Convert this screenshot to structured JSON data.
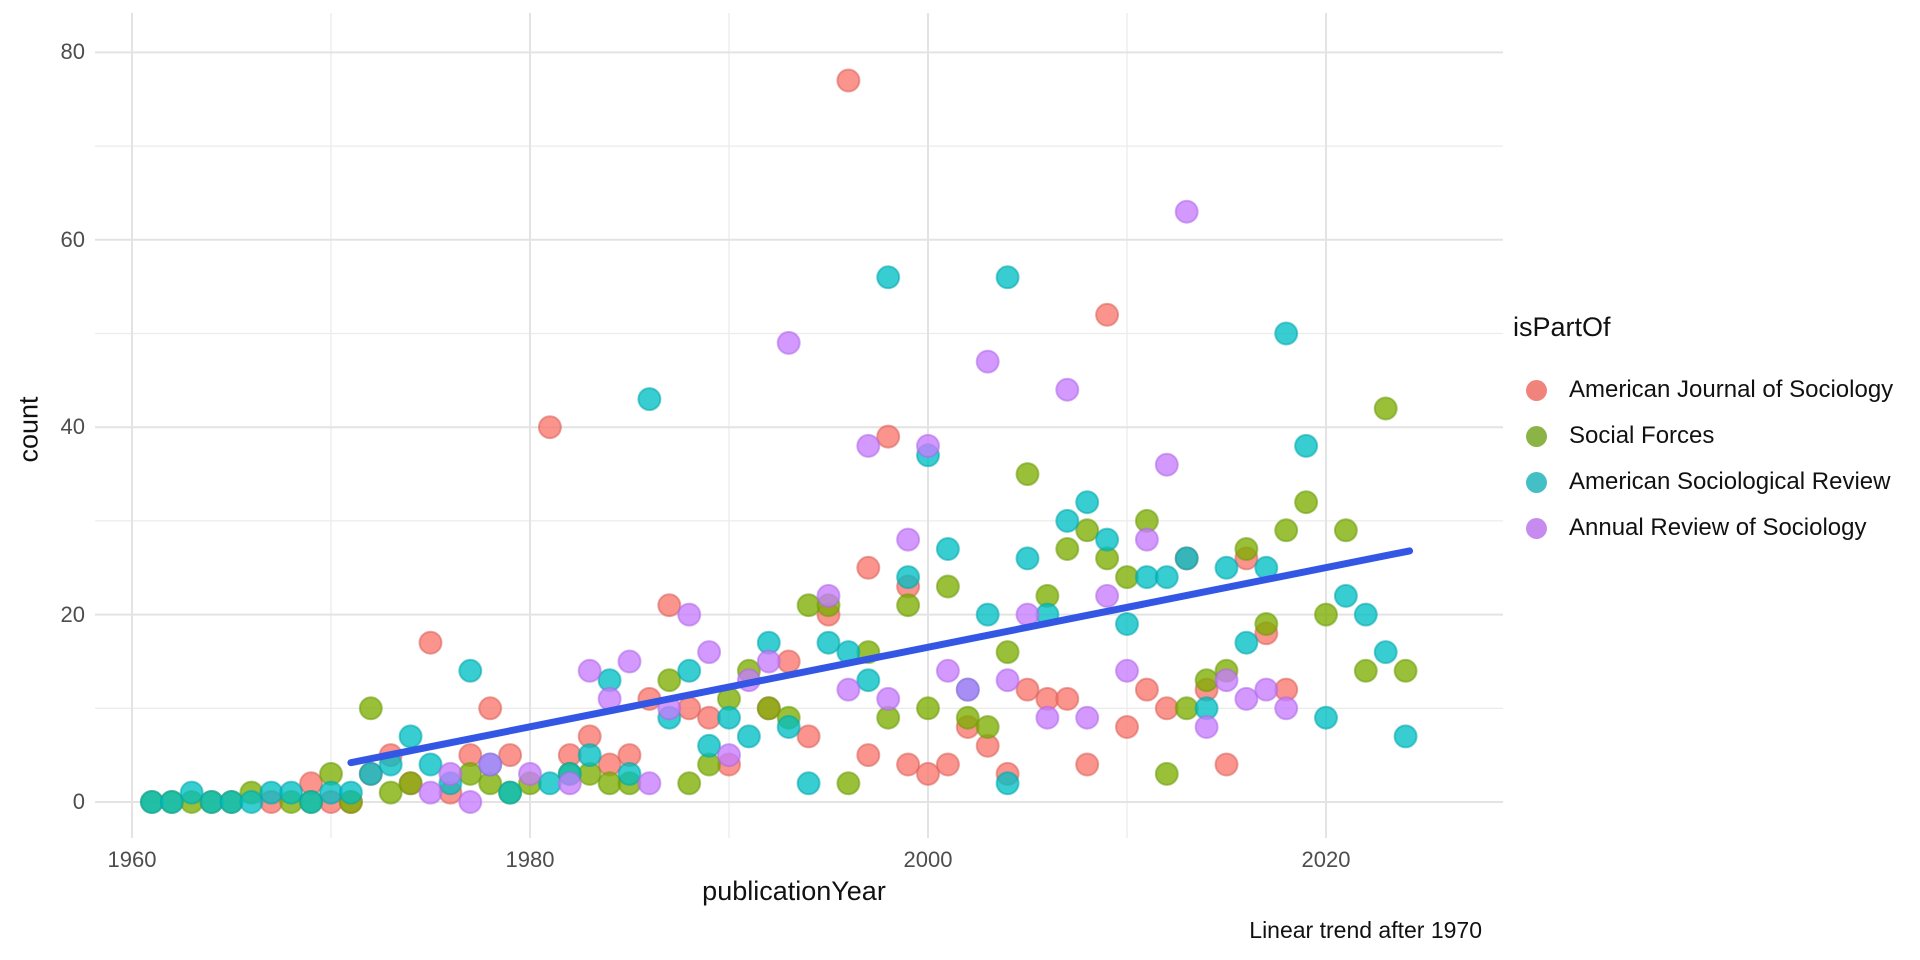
{
  "caption": "Linear trend after 1970",
  "legend": {
    "title": "isPartOf",
    "entries": [
      {
        "label": "American Journal of Sociology",
        "color": "#F0837B"
      },
      {
        "label": "Social Forces",
        "color": "#8AB446"
      },
      {
        "label": "American Sociological Review",
        "color": "#44BFC5"
      },
      {
        "label": "Annual Review of Sociology",
        "color": "#C78BF0"
      }
    ]
  },
  "chart_data": {
    "type": "scatter",
    "title": "",
    "xlabel": "publicationYear",
    "ylabel": "count",
    "x_ticks": [
      1960,
      1980,
      2000,
      2020
    ],
    "x_minor_ticks": [
      1970,
      1990,
      2010
    ],
    "y_ticks": [
      0,
      20,
      40,
      60,
      80
    ],
    "y_minor_ticks": [
      10,
      30,
      50,
      70
    ],
    "xlim": [
      1958.1,
      2028.9
    ],
    "ylim": [
      -3.8,
      84.2
    ],
    "grid": "major+minor",
    "legend_position": "right",
    "point_alpha": 0.78,
    "series": [
      {
        "name": "American Journal of Sociology",
        "color": "#F8766D",
        "stroke": "#D95F57",
        "points": [
          [
            1967,
            0
          ],
          [
            1969,
            2
          ],
          [
            1970,
            0
          ],
          [
            1971,
            0
          ],
          [
            1972,
            3
          ],
          [
            1973,
            5
          ],
          [
            1974,
            2
          ],
          [
            1975,
            17
          ],
          [
            1976,
            1
          ],
          [
            1977,
            5
          ],
          [
            1978,
            10
          ],
          [
            1979,
            5
          ],
          [
            1981,
            40
          ],
          [
            1982,
            5
          ],
          [
            1983,
            7
          ],
          [
            1984,
            4
          ],
          [
            1985,
            5
          ],
          [
            1986,
            11
          ],
          [
            1987,
            21
          ],
          [
            1988,
            10
          ],
          [
            1989,
            9
          ],
          [
            1990,
            4
          ],
          [
            1992,
            10
          ],
          [
            1993,
            15
          ],
          [
            1994,
            7
          ],
          [
            1995,
            20
          ],
          [
            1996,
            77
          ],
          [
            1997,
            25
          ],
          [
            1997,
            5
          ],
          [
            1998,
            39
          ],
          [
            1999,
            23
          ],
          [
            1999,
            4
          ],
          [
            2000,
            3
          ],
          [
            2001,
            4
          ],
          [
            2002,
            8
          ],
          [
            2003,
            6
          ],
          [
            2004,
            3
          ],
          [
            2005,
            12
          ],
          [
            2006,
            11
          ],
          [
            2007,
            11
          ],
          [
            2008,
            4
          ],
          [
            2009,
            52
          ],
          [
            2010,
            8
          ],
          [
            2011,
            12
          ],
          [
            2012,
            10
          ],
          [
            2013,
            26
          ],
          [
            2014,
            12
          ],
          [
            2015,
            4
          ],
          [
            2016,
            26
          ],
          [
            2017,
            18
          ],
          [
            2018,
            12
          ]
        ]
      },
      {
        "name": "Social Forces",
        "color": "#7CAE00",
        "stroke": "#6B9A0B",
        "points": [
          [
            1961,
            0
          ],
          [
            1962,
            0
          ],
          [
            1963,
            0
          ],
          [
            1964,
            0
          ],
          [
            1965,
            0
          ],
          [
            1966,
            1
          ],
          [
            1968,
            0
          ],
          [
            1969,
            0
          ],
          [
            1970,
            3
          ],
          [
            1971,
            0
          ],
          [
            1972,
            10
          ],
          [
            1973,
            1
          ],
          [
            1974,
            2
          ],
          [
            1977,
            3
          ],
          [
            1978,
            2
          ],
          [
            1979,
            1
          ],
          [
            1980,
            2
          ],
          [
            1982,
            3
          ],
          [
            1983,
            3
          ],
          [
            1984,
            2
          ],
          [
            1985,
            2
          ],
          [
            1987,
            13
          ],
          [
            1988,
            2
          ],
          [
            1989,
            4
          ],
          [
            1990,
            11
          ],
          [
            1991,
            14
          ],
          [
            1992,
            10
          ],
          [
            1993,
            9
          ],
          [
            1994,
            21
          ],
          [
            1995,
            21
          ],
          [
            1996,
            2
          ],
          [
            1997,
            16
          ],
          [
            1998,
            9
          ],
          [
            1999,
            21
          ],
          [
            2000,
            10
          ],
          [
            2001,
            23
          ],
          [
            2002,
            9
          ],
          [
            2003,
            8
          ],
          [
            2004,
            16
          ],
          [
            2005,
            35
          ],
          [
            2006,
            22
          ],
          [
            2007,
            27
          ],
          [
            2008,
            29
          ],
          [
            2009,
            26
          ],
          [
            2010,
            24
          ],
          [
            2011,
            30
          ],
          [
            2012,
            3
          ],
          [
            2013,
            10
          ],
          [
            2014,
            13
          ],
          [
            2015,
            14
          ],
          [
            2016,
            27
          ],
          [
            2017,
            19
          ],
          [
            2018,
            29
          ],
          [
            2019,
            32
          ],
          [
            2020,
            20
          ],
          [
            2021,
            29
          ],
          [
            2022,
            14
          ],
          [
            2023,
            42
          ],
          [
            2024,
            14
          ]
        ]
      },
      {
        "name": "American Sociological Review",
        "color": "#00BFC4",
        "stroke": "#00A5AC",
        "points": [
          [
            1961,
            0
          ],
          [
            1962,
            0
          ],
          [
            1963,
            1
          ],
          [
            1964,
            0
          ],
          [
            1965,
            0
          ],
          [
            1966,
            0
          ],
          [
            1967,
            1
          ],
          [
            1968,
            1
          ],
          [
            1969,
            0
          ],
          [
            1970,
            1
          ],
          [
            1971,
            1
          ],
          [
            1972,
            3
          ],
          [
            1973,
            4
          ],
          [
            1974,
            7
          ],
          [
            1975,
            4
          ],
          [
            1976,
            2
          ],
          [
            1977,
            14
          ],
          [
            1978,
            4
          ],
          [
            1979,
            1
          ],
          [
            1981,
            2
          ],
          [
            1982,
            3
          ],
          [
            1983,
            5
          ],
          [
            1984,
            13
          ],
          [
            1985,
            3
          ],
          [
            1986,
            43
          ],
          [
            1987,
            9
          ],
          [
            1988,
            14
          ],
          [
            1989,
            6
          ],
          [
            1990,
            9
          ],
          [
            1991,
            7
          ],
          [
            1992,
            17
          ],
          [
            1993,
            8
          ],
          [
            1994,
            2
          ],
          [
            1995,
            17
          ],
          [
            1996,
            16
          ],
          [
            1997,
            13
          ],
          [
            1998,
            56
          ],
          [
            1999,
            24
          ],
          [
            2000,
            37
          ],
          [
            2001,
            27
          ],
          [
            2002,
            12
          ],
          [
            2003,
            20
          ],
          [
            2004,
            56
          ],
          [
            2004,
            2
          ],
          [
            2005,
            26
          ],
          [
            2006,
            20
          ],
          [
            2007,
            30
          ],
          [
            2008,
            32
          ],
          [
            2009,
            28
          ],
          [
            2010,
            19
          ],
          [
            2011,
            24
          ],
          [
            2012,
            24
          ],
          [
            2013,
            26
          ],
          [
            2014,
            10
          ],
          [
            2015,
            25
          ],
          [
            2016,
            17
          ],
          [
            2017,
            25
          ],
          [
            2018,
            50
          ],
          [
            2019,
            38
          ],
          [
            2020,
            9
          ],
          [
            2021,
            22
          ],
          [
            2022,
            20
          ],
          [
            2023,
            16
          ],
          [
            2024,
            7
          ]
        ]
      },
      {
        "name": "Annual Review of Sociology",
        "color": "#C77CFF",
        "stroke": "#AE66E8",
        "points": [
          [
            1975,
            1
          ],
          [
            1976,
            3
          ],
          [
            1977,
            0
          ],
          [
            1978,
            4
          ],
          [
            1980,
            3
          ],
          [
            1982,
            2
          ],
          [
            1983,
            14
          ],
          [
            1984,
            11
          ],
          [
            1985,
            15
          ],
          [
            1986,
            2
          ],
          [
            1987,
            10
          ],
          [
            1988,
            20
          ],
          [
            1989,
            16
          ],
          [
            1990,
            5
          ],
          [
            1991,
            13
          ],
          [
            1992,
            15
          ],
          [
            1993,
            49
          ],
          [
            1995,
            22
          ],
          [
            1996,
            12
          ],
          [
            1997,
            38
          ],
          [
            1998,
            11
          ],
          [
            1999,
            28
          ],
          [
            2000,
            38
          ],
          [
            2001,
            14
          ],
          [
            2002,
            12
          ],
          [
            2003,
            47
          ],
          [
            2004,
            13
          ],
          [
            2005,
            20
          ],
          [
            2006,
            9
          ],
          [
            2007,
            44
          ],
          [
            2008,
            9
          ],
          [
            2009,
            22
          ],
          [
            2010,
            14
          ],
          [
            2011,
            28
          ],
          [
            2012,
            36
          ],
          [
            2013,
            63
          ],
          [
            2014,
            8
          ],
          [
            2015,
            13
          ],
          [
            2016,
            11
          ],
          [
            2017,
            12
          ],
          [
            2018,
            10
          ]
        ]
      }
    ],
    "trend": {
      "label": "Linear trend after 1970",
      "x1": 1971,
      "y1": 4.2,
      "x2": 2024.2,
      "y2": 26.8,
      "color": "#3356E4",
      "width": 7
    }
  }
}
